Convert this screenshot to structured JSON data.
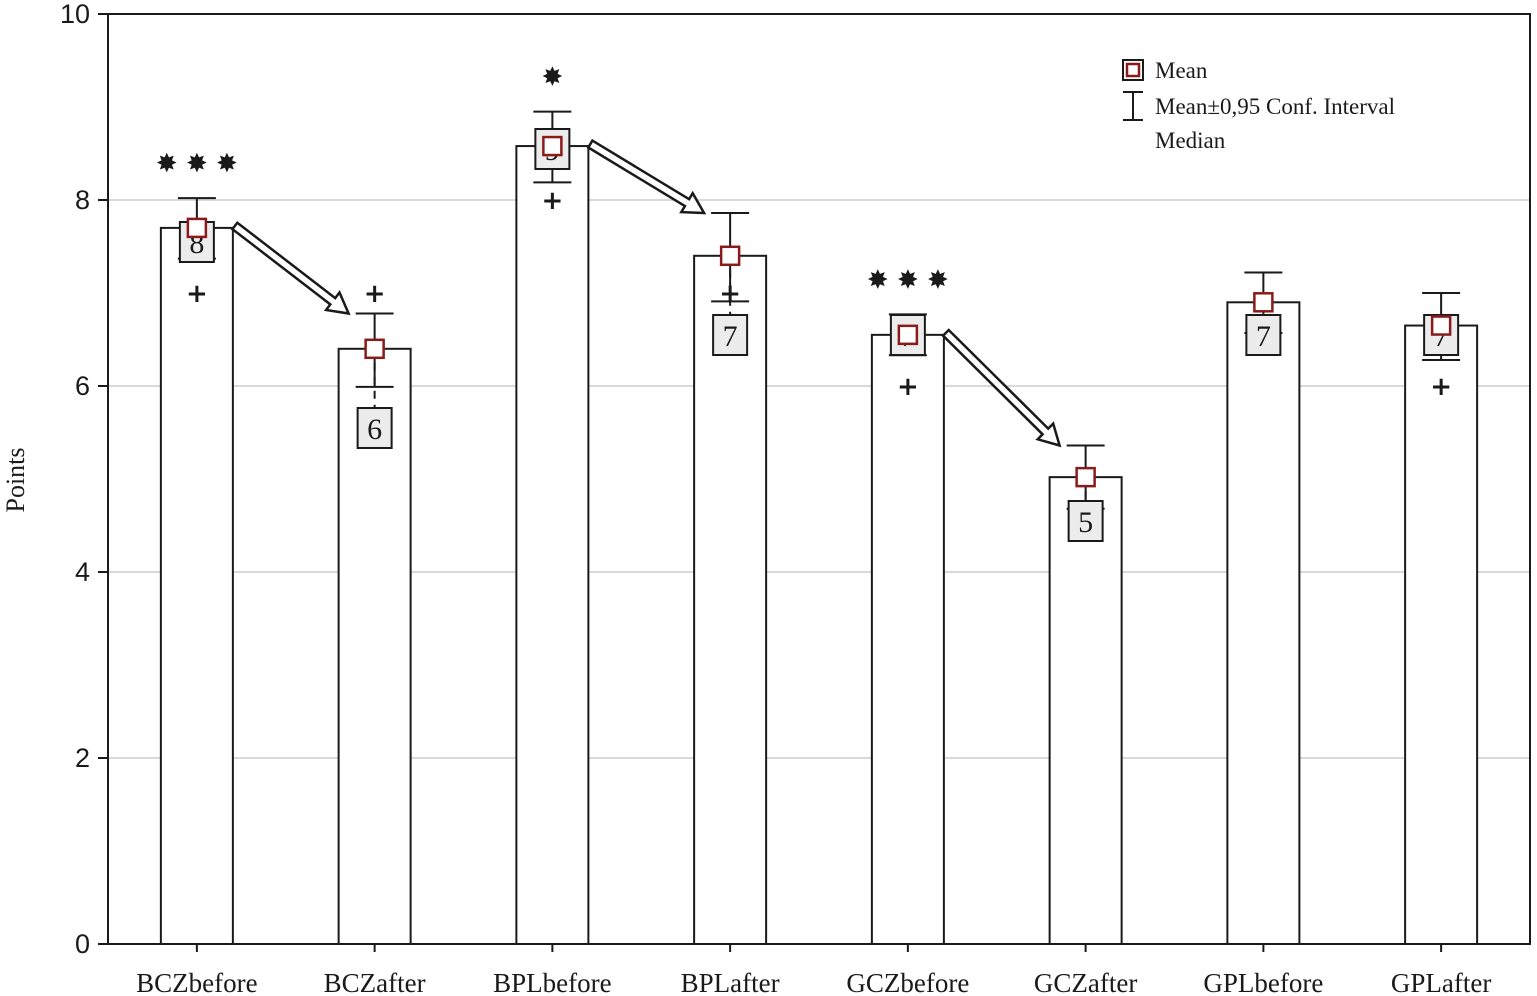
{
  "chart_data": {
    "type": "bar",
    "title": "",
    "xlabel": "",
    "ylabel": "Points",
    "ylim": [
      0,
      10
    ],
    "yticks": [
      0,
      2,
      4,
      6,
      8,
      10
    ],
    "grid": true,
    "categories": [
      "BCZbefore",
      "BCZafter",
      "BPLbefore",
      "BPLafter",
      "GCZbefore",
      "GCZafter",
      "GPLbefore",
      "GPLafter"
    ],
    "series": [
      {
        "name": "Mean",
        "values": [
          7.7,
          6.4,
          8.58,
          7.4,
          6.55,
          5.02,
          6.9,
          6.65
        ]
      }
    ],
    "ci_low": [
      7.37,
      5.99,
      8.19,
      6.91,
      6.33,
      4.68,
      6.57,
      6.28
    ],
    "ci_high": [
      8.02,
      6.78,
      8.95,
      7.86,
      6.77,
      5.36,
      7.22,
      7.0
    ],
    "medians": [
      8,
      6,
      9,
      7,
      7,
      5,
      7,
      7
    ],
    "median_labels": [
      "8",
      "6",
      "9",
      "7",
      "7",
      "5",
      "7",
      "7"
    ],
    "plus_marks": [
      7,
      7,
      8,
      7,
      6,
      null,
      null,
      6
    ],
    "significance": [
      {
        "category": "BCZbefore",
        "label": "✸ ✸ ✸"
      },
      {
        "category": "BPLbefore",
        "label": "✸"
      },
      {
        "category": "GCZbefore",
        "label": "✸ ✸ ✸"
      }
    ],
    "arrows": [
      {
        "from": "BCZbefore",
        "to": "BCZafter"
      },
      {
        "from": "BPLbefore",
        "to": "BPLafter"
      },
      {
        "from": "GCZbefore",
        "to": "GCZafter"
      }
    ],
    "legend": {
      "position": "top-right",
      "items": [
        "Mean",
        "Mean±0,95 Conf. Interval",
        "Median"
      ]
    },
    "colors": {
      "marker": "#8b1a1a",
      "bar_stroke": "#1a1a1a",
      "bar_fill": "#ffffff",
      "grid": "#d9d9d9",
      "median_box_fill": "#ececec"
    }
  }
}
